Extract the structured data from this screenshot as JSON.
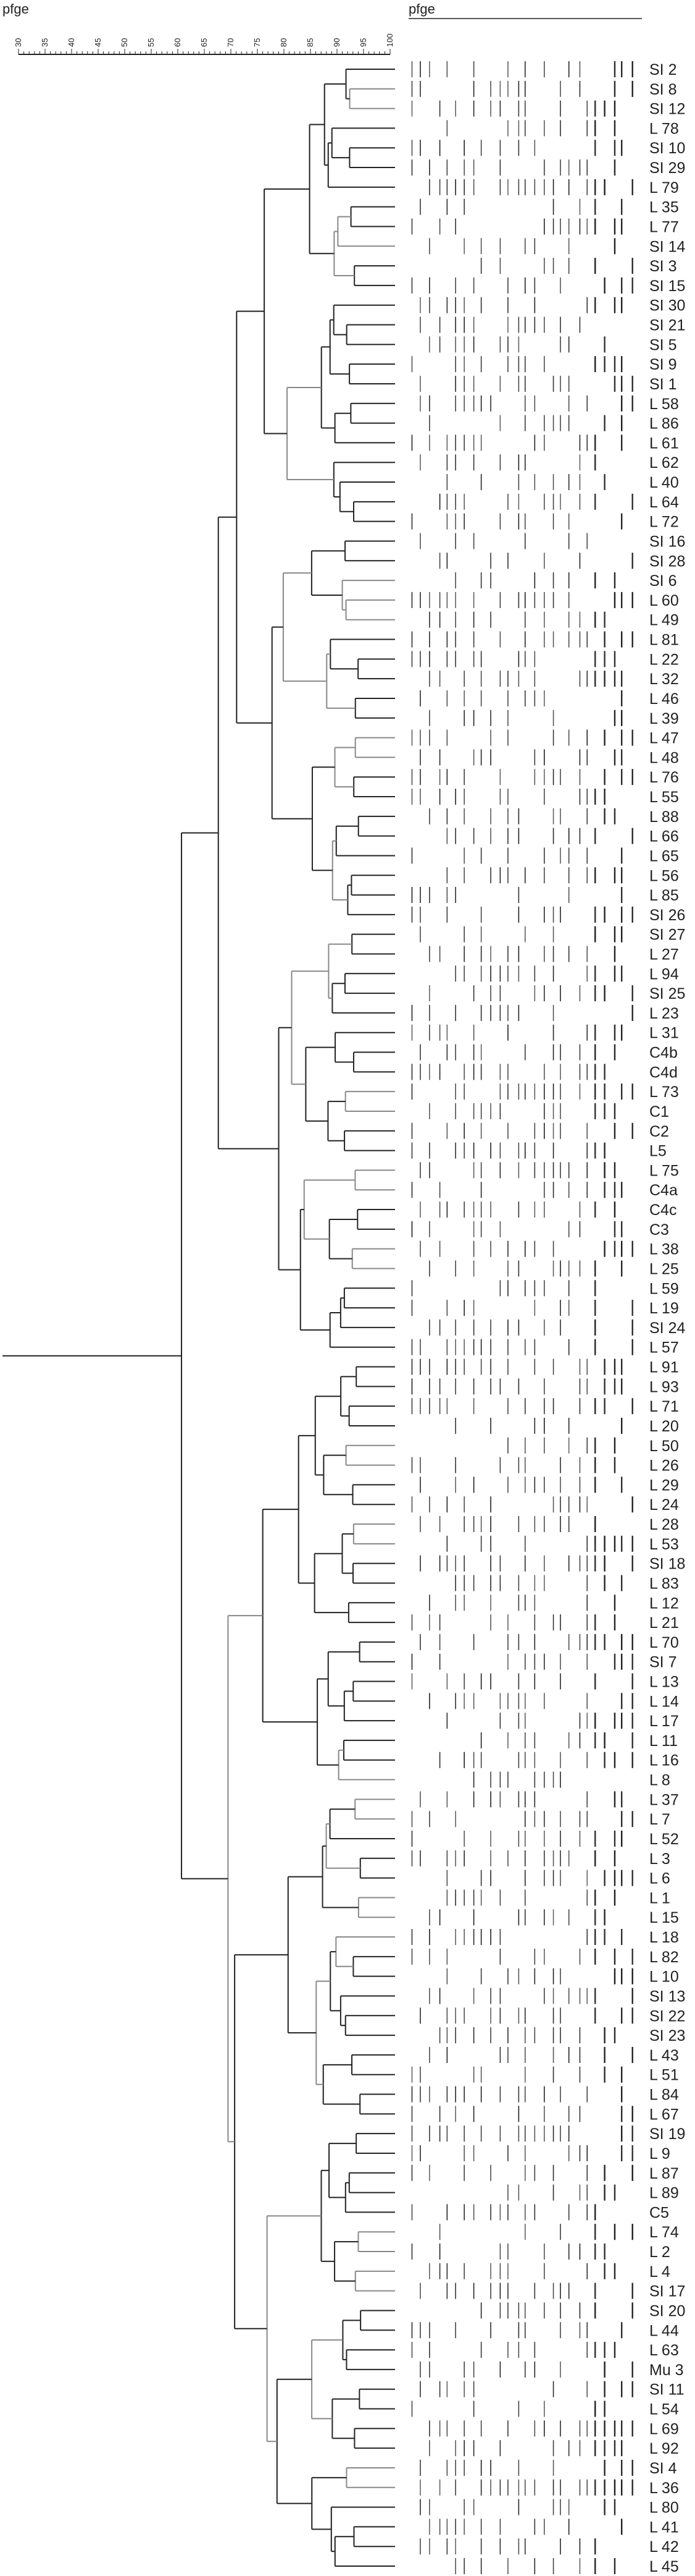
{
  "header": {
    "left_title": "pfge",
    "right_title": "pfge"
  },
  "scale": {
    "ticks": [
      "30",
      "35",
      "40",
      "45",
      "50",
      "55",
      "60",
      "65",
      "70",
      "75",
      "80",
      "85",
      "90",
      "95",
      "100"
    ]
  },
  "isolates": [
    "SI 2",
    "SI 8",
    "SI 12",
    "L 78",
    "SI 10",
    "SI 29",
    "L 79",
    "L 35",
    "L 77",
    "SI 14",
    "SI 3",
    "SI 15",
    "SI 30",
    "SI 21",
    "SI 5",
    "SI 9",
    "SI 1",
    "L 58",
    "L 86",
    "L 61",
    "L 62",
    "L 40",
    "L 64",
    "L 72",
    "SI 16",
    "SI 28",
    "SI 6",
    "L 60",
    "L 49",
    "L 81",
    "L 22",
    "L 32",
    "L 46",
    "L 39",
    "L 47",
    "L 48",
    "L 76",
    "L 55",
    "L 88",
    "L 66",
    "L 65",
    "L 56",
    "L 85",
    "SI 26",
    "SI 27",
    "L 27",
    "L 94",
    "SI 25",
    "L 23",
    "L 31",
    "C4b",
    "C4d",
    "L 73",
    "C1",
    "C2",
    "L5",
    "L 75",
    "C4a",
    "C4c",
    "C3",
    "L 38",
    "L 25",
    "L 59",
    "L 19",
    "SI 24",
    "L 57",
    "L 91",
    "L 93",
    "L 71",
    "L 20",
    "L 50",
    "L 26",
    "L 29",
    "L 24",
    "L 28",
    "L 53",
    "SI 18",
    "L 83",
    "L 12",
    "L 21",
    "L 70",
    "SI 7",
    "L 13",
    "L 14",
    "L 17",
    "L 11",
    "L 16",
    "L 8",
    "L 37",
    "L 7",
    "L 52",
    "L 3",
    "L 6",
    "L 1",
    "L 15",
    "L 18",
    "L 82",
    "L 10",
    "SI 13",
    "SI 22",
    "SI 23",
    "L 43",
    "L 51",
    "L 84",
    "L 67",
    "SI 19",
    "L 9",
    "L 87",
    "L 89",
    "C5",
    "L 74",
    "L 2",
    "L 4",
    "SI 17",
    "SI 20",
    "L 44",
    "L 63",
    "Mu 3",
    "SI 11",
    "L 54",
    "L 69",
    "L 92",
    "SI 4",
    "L 36",
    "L 80",
    "L 41",
    "L 42",
    "L 45"
  ]
}
